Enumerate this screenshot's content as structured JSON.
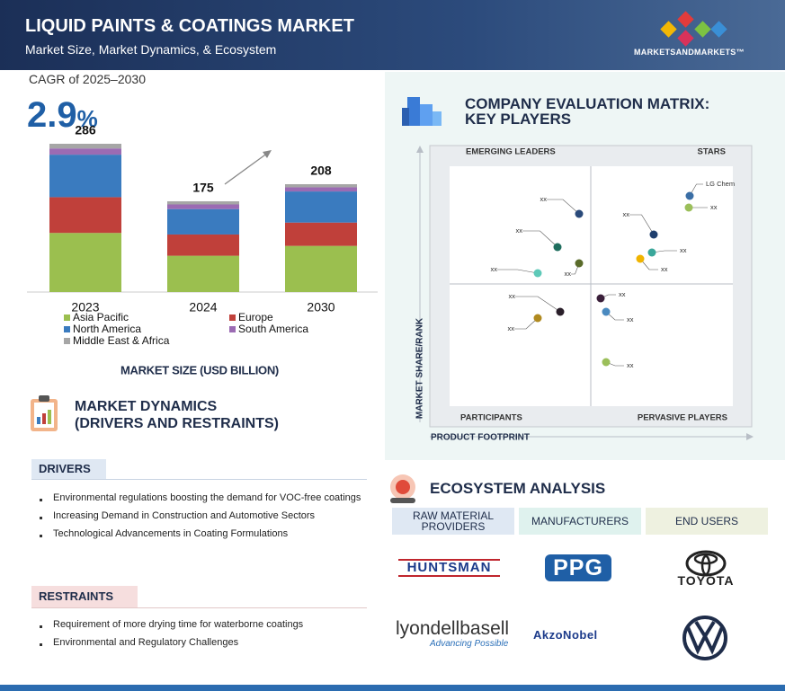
{
  "header": {
    "title": "LIQUID PAINTS & COATINGS MARKET",
    "subtitle": "Market Size, Market Dynamics, & Ecosystem",
    "brand": "MARKETSANDMARKETS™"
  },
  "cagr": {
    "label": "CAGR of 2025–2030",
    "value": "2.9",
    "unit": "%"
  },
  "chart_data": {
    "type": "stacked-bar",
    "categories": [
      "2023",
      "2024",
      "2030"
    ],
    "totals": [
      286,
      175,
      208
    ],
    "series": [
      {
        "name": "Asia Pacific",
        "color": "#9bbf4f",
        "values": [
          114,
          70,
          89
        ]
      },
      {
        "name": "Europe",
        "color": "#c0403a",
        "values": [
          69,
          41,
          45
        ]
      },
      {
        "name": "North America",
        "color": "#3a7bbf",
        "values": [
          82,
          49,
          60
        ]
      },
      {
        "name": "South America",
        "color": "#9b6bb3",
        "values": [
          12,
          9,
          8
        ]
      },
      {
        "name": "Middle East & Africa",
        "color": "#a6a6a6",
        "values": [
          9,
          6,
          6
        ]
      }
    ],
    "x_label": "MARKET SIZE (USD BILLION)"
  },
  "dynamics": {
    "title": [
      "MARKET DYNAMICS",
      "(DRIVERS AND RESTRAINTS)"
    ],
    "drivers": {
      "heading": "DRIVERS",
      "items": [
        "Environmental regulations boosting the demand for VOC-free coatings",
        "Increasing Demand in Construction and Automotive Sectors",
        "Technological Advancements in Coating Formulations"
      ]
    },
    "restraints": {
      "heading": "RESTRAINTS",
      "items": [
        "Requirement of more drying time for waterborne coatings",
        "Environmental and Regulatory Challenges"
      ]
    }
  },
  "matrix": {
    "title": [
      "COMPANY EVALUATION MATRIX:",
      "KEY PLAYERS"
    ],
    "quadrants": [
      "EMERGING LEADERS",
      "STARS",
      "PARTICIPANTS",
      "PERVASIVE PLAYERS"
    ],
    "y_label": "MARKET SHARE/RANK",
    "x_label": "PRODUCT FOOTPRINT",
    "points": [
      {
        "label": "xx",
        "color": "#2a4a7a"
      },
      {
        "label": "xx",
        "color": "#1f6e5e"
      },
      {
        "label": "xx",
        "color": "#5a6b2a"
      },
      {
        "label": "xx",
        "color": "#5ec9b8"
      },
      {
        "label": "LG Chem",
        "color": "#3a6ea5"
      },
      {
        "label": "xx",
        "color": "#9bbf5a"
      },
      {
        "label": "xx",
        "color": "#1f3f6e"
      },
      {
        "label": "xx",
        "color": "#3aa79a"
      },
      {
        "label": "xx",
        "color": "#f0b400"
      },
      {
        "label": "xx",
        "color": "#3a1f3a"
      },
      {
        "label": "xx",
        "color": "#2a1f2a"
      },
      {
        "label": "xx",
        "color": "#b08a20"
      },
      {
        "label": "xx",
        "color": "#4a8ac0"
      },
      {
        "label": "xx",
        "color": "#9bbf5a"
      }
    ]
  },
  "ecosystem": {
    "title": "ECOSYSTEM ANALYSIS",
    "columns": [
      {
        "heading": "RAW MATERIAL PROVIDERS",
        "logos": [
          "HUNTSMAN",
          "lyondellbasell"
        ],
        "tagline": "Advancing Possible"
      },
      {
        "heading": "MANUFACTURERS",
        "logos": [
          "PPG",
          "AkzoNobel"
        ]
      },
      {
        "heading": "END USERS",
        "logos": [
          "TOYOTA"
        ]
      }
    ]
  }
}
